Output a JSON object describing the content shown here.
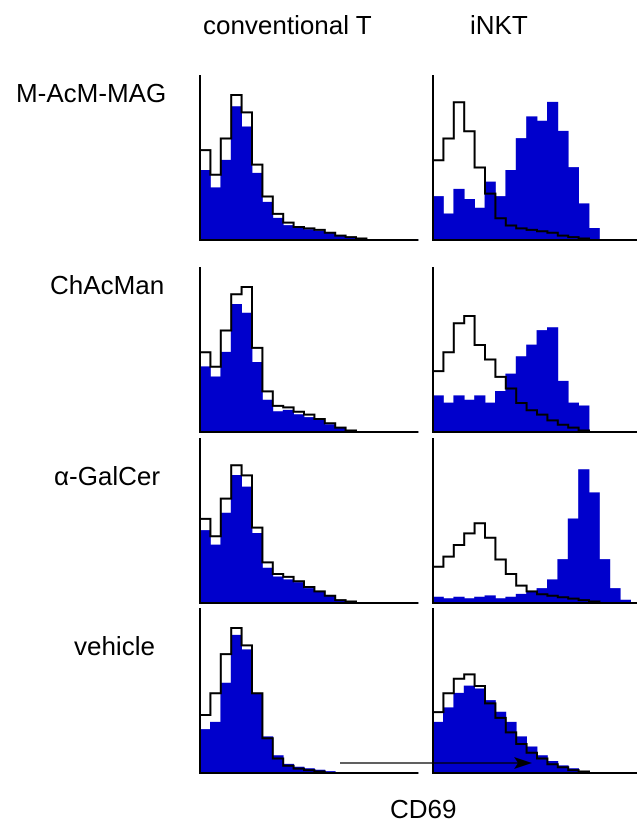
{
  "figure": {
    "columns": [
      "conventional T",
      "iNKT"
    ],
    "rows": [
      "M-AcM-MAG",
      "ChAcMan",
      "α-GalCer",
      "vehicle"
    ],
    "x_axis_label": "CD69"
  },
  "colors": {
    "filled": "#0000cc",
    "outline": "#000000"
  },
  "chart_data": [
    {
      "type": "area",
      "row": "M-AcM-MAG",
      "column": "conventional T",
      "x": [
        0,
        5,
        10,
        15,
        20,
        25,
        30,
        35,
        40,
        45,
        50,
        55,
        60,
        65,
        70,
        75,
        80,
        85,
        90,
        95,
        100
      ],
      "series": [
        {
          "style": "filled",
          "values": [
            48,
            36,
            55,
            92,
            78,
            46,
            26,
            15,
            10,
            8,
            7,
            6,
            5,
            3,
            2,
            1,
            0,
            0,
            0,
            0,
            0
          ]
        },
        {
          "style": "outline",
          "values": [
            62,
            45,
            70,
            100,
            88,
            52,
            30,
            18,
            12,
            9,
            8,
            7,
            5,
            3,
            2,
            1,
            0,
            0,
            0,
            0,
            0
          ]
        }
      ]
    },
    {
      "type": "area",
      "row": "M-AcM-MAG",
      "column": "iNKT",
      "x": [
        0,
        5,
        10,
        15,
        20,
        25,
        30,
        35,
        40,
        45,
        50,
        55,
        60,
        65,
        70,
        75,
        80,
        85,
        90,
        95,
        100
      ],
      "series": [
        {
          "style": "filled",
          "values": [
            30,
            18,
            35,
            28,
            22,
            40,
            30,
            48,
            70,
            85,
            82,
            95,
            75,
            50,
            25,
            8,
            0,
            0,
            0,
            0,
            0
          ]
        },
        {
          "style": "outline",
          "values": [
            55,
            70,
            95,
            75,
            50,
            32,
            15,
            10,
            8,
            7,
            6,
            5,
            3,
            2,
            1,
            0,
            0,
            0,
            0,
            0,
            0
          ]
        }
      ]
    },
    {
      "type": "area",
      "row": "ChAcMan",
      "column": "conventional T",
      "x": [
        0,
        5,
        10,
        15,
        20,
        25,
        30,
        35,
        40,
        45,
        50,
        55,
        60,
        65,
        70,
        75,
        80,
        85,
        90,
        95,
        100
      ],
      "series": [
        {
          "style": "filled",
          "values": [
            45,
            38,
            55,
            88,
            82,
            48,
            22,
            14,
            15,
            12,
            10,
            8,
            5,
            3,
            1,
            0,
            0,
            0,
            0,
            0,
            0
          ]
        },
        {
          "style": "outline",
          "values": [
            55,
            45,
            70,
            95,
            100,
            58,
            28,
            18,
            17,
            14,
            12,
            9,
            6,
            3,
            1,
            0,
            0,
            0,
            0,
            0,
            0
          ]
        }
      ]
    },
    {
      "type": "area",
      "row": "ChAcMan",
      "column": "iNKT",
      "x": [
        0,
        5,
        10,
        15,
        20,
        25,
        30,
        35,
        40,
        45,
        50,
        55,
        60,
        65,
        70,
        75,
        80,
        85,
        90,
        95,
        100
      ],
      "series": [
        {
          "style": "filled",
          "values": [
            25,
            20,
            25,
            22,
            25,
            20,
            28,
            40,
            52,
            60,
            70,
            72,
            35,
            20,
            18,
            0,
            0,
            0,
            0,
            0,
            0
          ]
        },
        {
          "style": "outline",
          "values": [
            42,
            55,
            75,
            80,
            60,
            50,
            38,
            30,
            20,
            15,
            12,
            8,
            5,
            3,
            1,
            0,
            0,
            0,
            0,
            0,
            0
          ]
        }
      ]
    },
    {
      "type": "area",
      "row": "α-GalCer",
      "column": "conventional T",
      "x": [
        0,
        5,
        10,
        15,
        20,
        25,
        30,
        35,
        40,
        45,
        50,
        55,
        60,
        65,
        70,
        75,
        80,
        85,
        90,
        95,
        100
      ],
      "series": [
        {
          "style": "filled",
          "values": [
            50,
            40,
            62,
            88,
            80,
            48,
            24,
            18,
            16,
            14,
            10,
            8,
            5,
            2,
            1,
            0,
            0,
            0,
            0,
            0,
            0
          ]
        },
        {
          "style": "outline",
          "values": [
            58,
            46,
            72,
            95,
            88,
            52,
            28,
            20,
            18,
            15,
            11,
            8,
            5,
            2,
            1,
            0,
            0,
            0,
            0,
            0,
            0
          ]
        }
      ]
    },
    {
      "type": "area",
      "row": "α-GalCer",
      "column": "iNKT",
      "x": [
        0,
        5,
        10,
        15,
        20,
        25,
        30,
        35,
        40,
        45,
        50,
        55,
        60,
        65,
        70,
        75,
        80,
        85,
        90,
        95,
        100
      ],
      "series": [
        {
          "style": "filled",
          "values": [
            4,
            3,
            4,
            3,
            4,
            5,
            3,
            4,
            6,
            8,
            10,
            16,
            30,
            58,
            92,
            76,
            30,
            10,
            2,
            0,
            0
          ]
        },
        {
          "style": "outline",
          "values": [
            25,
            32,
            40,
            48,
            55,
            45,
            30,
            20,
            12,
            8,
            6,
            5,
            4,
            3,
            2,
            1,
            0,
            0,
            0,
            0,
            0
          ]
        }
      ]
    },
    {
      "type": "area",
      "row": "vehicle",
      "column": "conventional T",
      "x": [
        0,
        5,
        10,
        15,
        20,
        25,
        30,
        35,
        40,
        45,
        50,
        55,
        60,
        65,
        70,
        75,
        80,
        85,
        90,
        95,
        100
      ],
      "series": [
        {
          "style": "filled",
          "values": [
            30,
            35,
            62,
            95,
            85,
            55,
            25,
            12,
            6,
            4,
            3,
            2,
            1,
            0,
            0,
            0,
            0,
            0,
            0,
            0,
            0
          ]
        },
        {
          "style": "outline",
          "values": [
            40,
            55,
            82,
            100,
            88,
            55,
            24,
            10,
            5,
            3,
            2,
            1,
            0,
            0,
            0,
            0,
            0,
            0,
            0,
            0,
            0
          ]
        }
      ]
    },
    {
      "type": "area",
      "row": "vehicle",
      "column": "iNKT",
      "x": [
        0,
        5,
        10,
        15,
        20,
        25,
        30,
        35,
        40,
        45,
        50,
        55,
        60,
        65,
        70,
        75,
        80,
        85,
        90,
        95,
        100
      ],
      "series": [
        {
          "style": "filled",
          "values": [
            35,
            45,
            55,
            60,
            58,
            50,
            42,
            35,
            25,
            18,
            12,
            8,
            5,
            3,
            1,
            0,
            0,
            0,
            0,
            0,
            0
          ]
        },
        {
          "style": "outline",
          "values": [
            42,
            55,
            65,
            68,
            60,
            48,
            38,
            28,
            20,
            14,
            10,
            6,
            4,
            2,
            1,
            0,
            0,
            0,
            0,
            0,
            0
          ]
        }
      ]
    }
  ]
}
